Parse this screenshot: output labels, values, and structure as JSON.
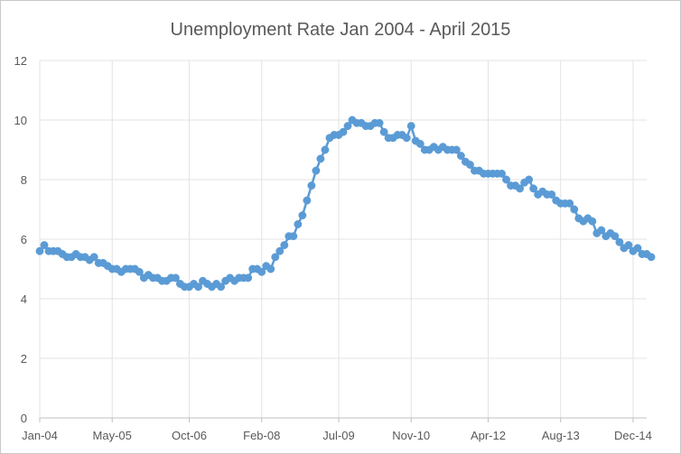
{
  "chart_data": {
    "type": "line",
    "title": "Unemployment Rate  Jan 2004 - April 2015",
    "xlabel": "",
    "ylabel": "",
    "ylim": [
      0,
      12
    ],
    "y_ticks": [
      0,
      2,
      4,
      6,
      8,
      10,
      12
    ],
    "y_tick_labels": [
      "0",
      "2",
      "4",
      "6",
      "8",
      "10",
      "12"
    ],
    "x_tick_labels": [
      "Jan-04",
      "May-05",
      "Oct-06",
      "Feb-08",
      "Jul-09",
      "Nov-10",
      "Apr-12",
      "Aug-13",
      "Dec-14"
    ],
    "x_ticks": [
      "2004-01",
      "2005-05",
      "2006-10",
      "2008-02",
      "2009-07",
      "2010-11",
      "2012-04",
      "2013-08",
      "2014-12"
    ],
    "grid": true,
    "legend": "none",
    "marker": "circle",
    "colors": {
      "series": "#5b9bd5",
      "grid": "#e3e3e3",
      "axis": "#bfbfbf",
      "text": "#595959"
    },
    "x": [
      "2004-01",
      "2004-02",
      "2004-03",
      "2004-04",
      "2004-05",
      "2004-06",
      "2004-07",
      "2004-08",
      "2004-09",
      "2004-10",
      "2004-11",
      "2004-12",
      "2005-01",
      "2005-02",
      "2005-03",
      "2005-04",
      "2005-05",
      "2005-06",
      "2005-07",
      "2005-08",
      "2005-09",
      "2005-10",
      "2005-11",
      "2005-12",
      "2006-01",
      "2006-02",
      "2006-03",
      "2006-04",
      "2006-05",
      "2006-06",
      "2006-07",
      "2006-08",
      "2006-09",
      "2006-10",
      "2006-11",
      "2006-12",
      "2007-01",
      "2007-02",
      "2007-03",
      "2007-04",
      "2007-05",
      "2007-06",
      "2007-07",
      "2007-08",
      "2007-09",
      "2007-10",
      "2007-11",
      "2007-12",
      "2008-01",
      "2008-02",
      "2008-03",
      "2008-04",
      "2008-05",
      "2008-06",
      "2008-07",
      "2008-08",
      "2008-09",
      "2008-10",
      "2008-11",
      "2008-12",
      "2009-01",
      "2009-02",
      "2009-03",
      "2009-04",
      "2009-05",
      "2009-06",
      "2009-07",
      "2009-08",
      "2009-09",
      "2009-10",
      "2009-11",
      "2009-12",
      "2010-01",
      "2010-02",
      "2010-03",
      "2010-04",
      "2010-05",
      "2010-06",
      "2010-07",
      "2010-08",
      "2010-09",
      "2010-10",
      "2010-11",
      "2010-12",
      "2011-01",
      "2011-02",
      "2011-03",
      "2011-04",
      "2011-05",
      "2011-06",
      "2011-07",
      "2011-08",
      "2011-09",
      "2011-10",
      "2011-11",
      "2011-12",
      "2012-01",
      "2012-02",
      "2012-03",
      "2012-04",
      "2012-05",
      "2012-06",
      "2012-07",
      "2012-08",
      "2012-09",
      "2012-10",
      "2012-11",
      "2012-12",
      "2013-01",
      "2013-02",
      "2013-03",
      "2013-04",
      "2013-05",
      "2013-06",
      "2013-07",
      "2013-08",
      "2013-09",
      "2013-10",
      "2013-11",
      "2013-12",
      "2014-01",
      "2014-02",
      "2014-03",
      "2014-04",
      "2014-05",
      "2014-06",
      "2014-07",
      "2014-08",
      "2014-09",
      "2014-10",
      "2014-11",
      "2014-12",
      "2015-01",
      "2015-02",
      "2015-03",
      "2015-04"
    ],
    "series": [
      {
        "values": [
          5.6,
          5.8,
          5.6,
          5.6,
          5.6,
          5.5,
          5.4,
          5.4,
          5.5,
          5.4,
          5.4,
          5.3,
          5.4,
          5.2,
          5.2,
          5.1,
          5.0,
          5.0,
          4.9,
          5.0,
          5.0,
          5.0,
          4.9,
          4.7,
          4.8,
          4.7,
          4.7,
          4.6,
          4.6,
          4.7,
          4.7,
          4.5,
          4.4,
          4.4,
          4.5,
          4.4,
          4.6,
          4.5,
          4.4,
          4.5,
          4.4,
          4.6,
          4.7,
          4.6,
          4.7,
          4.7,
          4.7,
          5.0,
          5.0,
          4.9,
          5.1,
          5.0,
          5.4,
          5.6,
          5.8,
          6.1,
          6.1,
          6.5,
          6.8,
          7.3,
          7.8,
          8.3,
          8.7,
          9.0,
          9.4,
          9.5,
          9.5,
          9.6,
          9.8,
          10.0,
          9.9,
          9.9,
          9.8,
          9.8,
          9.9,
          9.9,
          9.6,
          9.4,
          9.4,
          9.5,
          9.5,
          9.4,
          9.8,
          9.3,
          9.2,
          9.0,
          9.0,
          9.1,
          9.0,
          9.1,
          9.0,
          9.0,
          9.0,
          8.8,
          8.6,
          8.5,
          8.3,
          8.3,
          8.2,
          8.2,
          8.2,
          8.2,
          8.2,
          8.0,
          7.8,
          7.8,
          7.7,
          7.9,
          8.0,
          7.7,
          7.5,
          7.6,
          7.5,
          7.5,
          7.3,
          7.2,
          7.2,
          7.2,
          7.0,
          6.7,
          6.6,
          6.7,
          6.6,
          6.2,
          6.3,
          6.1,
          6.2,
          6.1,
          5.9,
          5.7,
          5.8,
          5.6,
          5.7,
          5.5,
          5.5,
          5.4
        ]
      }
    ]
  }
}
